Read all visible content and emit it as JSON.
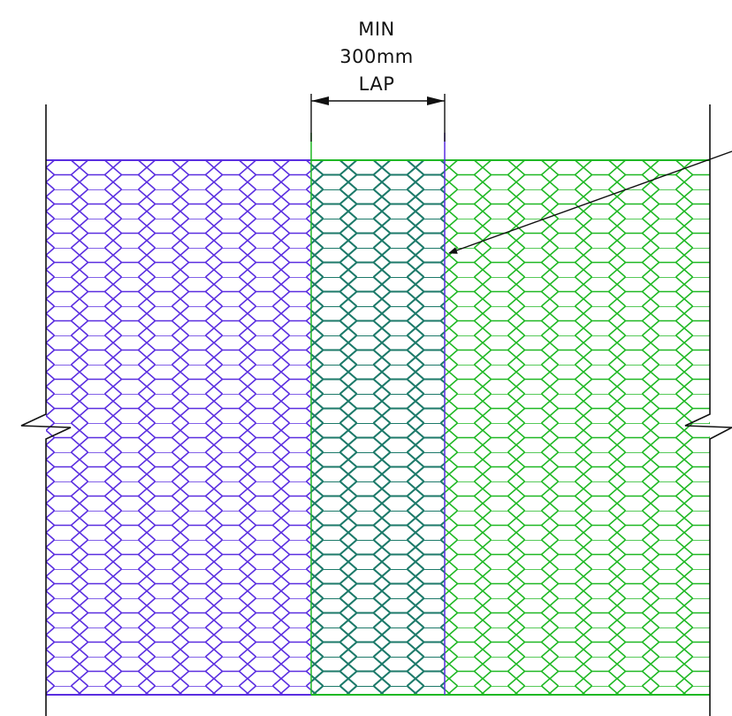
{
  "annotation": {
    "lines": [
      "MIN",
      "300mm",
      "LAP"
    ]
  },
  "colors": {
    "mesh_left": "#5a2ee0",
    "mesh_right": "#1fb824",
    "mesh_overlap": "#1d7a6a",
    "linework": "#111111",
    "background": "#ffffff"
  },
  "mesh": {
    "pattern": "hexagonal-wire-netting",
    "lap_region": "overlap"
  }
}
